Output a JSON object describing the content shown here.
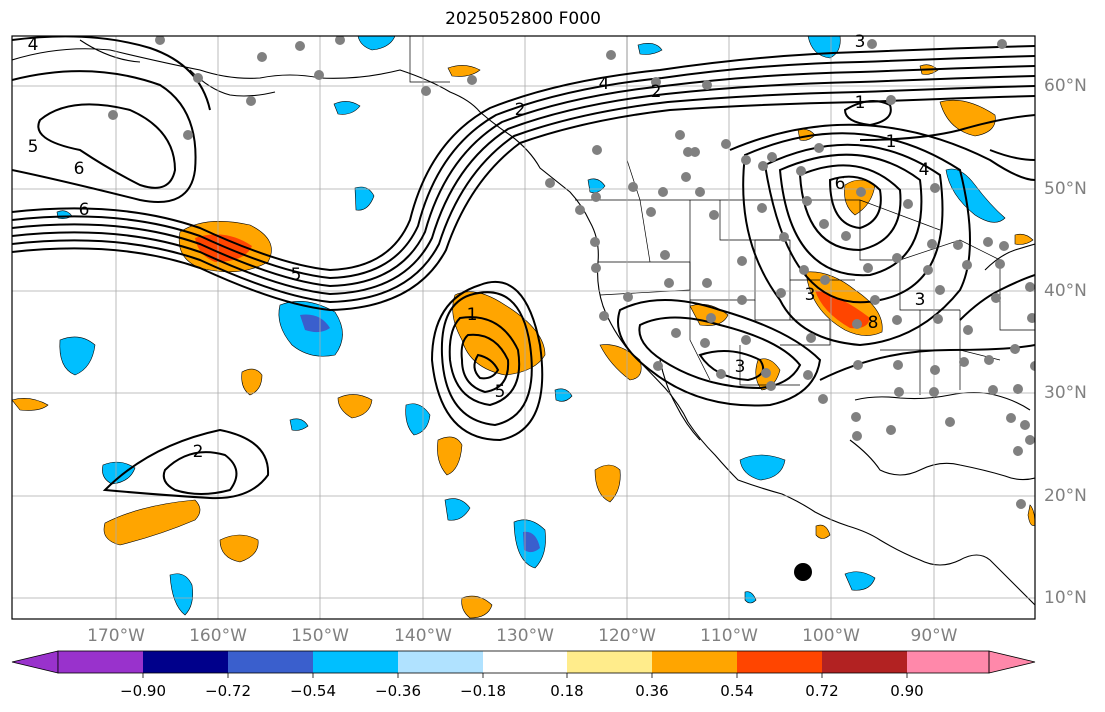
{
  "title": "2025052800 F000",
  "lon_labels": [
    "170°W",
    "160°W",
    "150°W",
    "140°W",
    "130°W",
    "120°W",
    "110°W",
    "100°W",
    "90°W"
  ],
  "lat_labels": [
    "60°N",
    "50°N",
    "40°N",
    "30°N",
    "20°N",
    "10°N"
  ],
  "colorbar": {
    "ticks": [
      "−0.90",
      "−0.72",
      "−0.54",
      "−0.36",
      "−0.18",
      "0.18",
      "0.36",
      "0.54",
      "0.72",
      "0.90"
    ],
    "colors": [
      "#9932cc",
      "#00008b",
      "#3a5fcd",
      "#00bfff",
      "#b0e2ff",
      "#ffffff",
      "#ffec8b",
      "#ffa500",
      "#ff4500",
      "#b22222",
      "#ff88aa"
    ]
  },
  "contour_labels": [
    "4",
    "5",
    "6",
    "6",
    "5",
    "3",
    "2",
    "4",
    "2",
    "1",
    "1",
    "4",
    "6",
    "8",
    "3",
    "3",
    "1",
    "5",
    "2",
    "3"
  ]
}
